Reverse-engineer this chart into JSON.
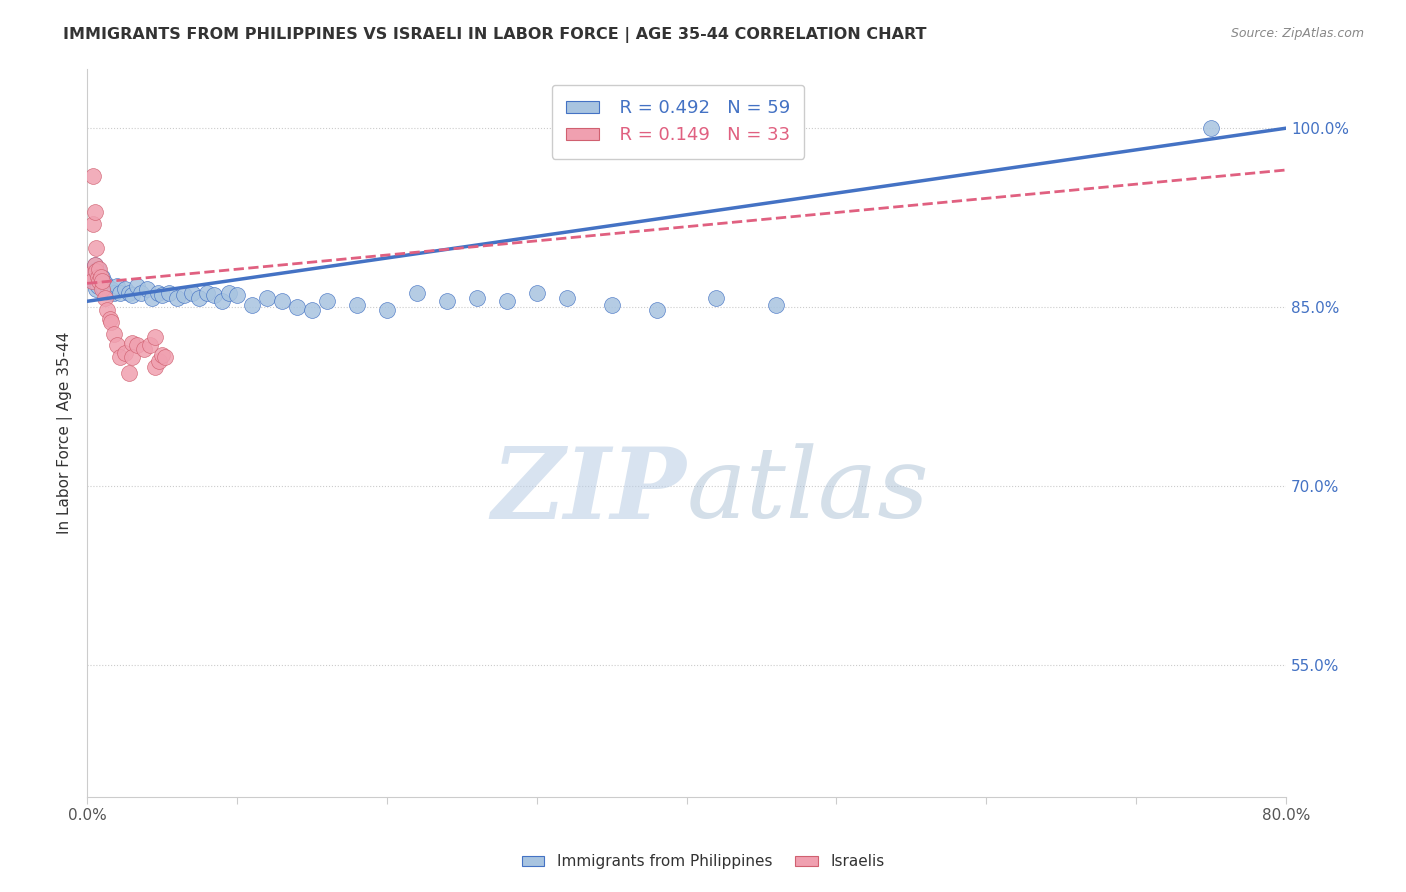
{
  "title": "IMMIGRANTS FROM PHILIPPINES VS ISRAELI IN LABOR FORCE | AGE 35-44 CORRELATION CHART",
  "source": "Source: ZipAtlas.com",
  "xlabel": "",
  "ylabel": "In Labor Force | Age 35-44",
  "x_min": 0.0,
  "x_max": 0.8,
  "y_min": 0.44,
  "y_max": 1.05,
  "right_yticks": [
    0.55,
    0.7,
    0.85,
    1.0
  ],
  "right_yticklabels": [
    "55.0%",
    "70.0%",
    "85.0%",
    "100.0%"
  ],
  "x_ticks": [
    0.0,
    0.1,
    0.2,
    0.3,
    0.4,
    0.5,
    0.6,
    0.7,
    0.8
  ],
  "x_ticklabels": [
    "0.0%",
    "",
    "",
    "",
    "",
    "",
    "",
    "",
    "80.0%"
  ],
  "philippines_color": "#a8c4e0",
  "israel_color": "#f0a0b0",
  "philippines_line_color": "#4472c4",
  "israel_line_color": "#e06080",
  "R_philippines": 0.492,
  "N_philippines": 59,
  "R_israel": 0.149,
  "N_israel": 33,
  "legend_philippines": "Immigrants from Philippines",
  "legend_israel": "Israelis",
  "watermark": "ZIPatlas",
  "philippines_x": [
    0.002,
    0.003,
    0.004,
    0.005,
    0.005,
    0.006,
    0.006,
    0.007,
    0.007,
    0.008,
    0.009,
    0.01,
    0.01,
    0.011,
    0.012,
    0.013,
    0.015,
    0.016,
    0.018,
    0.02,
    0.022,
    0.025,
    0.028,
    0.03,
    0.033,
    0.036,
    0.04,
    0.043,
    0.047,
    0.05,
    0.055,
    0.06,
    0.065,
    0.07,
    0.075,
    0.08,
    0.085,
    0.09,
    0.095,
    0.1,
    0.11,
    0.12,
    0.13,
    0.14,
    0.15,
    0.16,
    0.18,
    0.2,
    0.22,
    0.24,
    0.26,
    0.28,
    0.3,
    0.32,
    0.35,
    0.38,
    0.42,
    0.46,
    0.75
  ],
  "philippines_y": [
    0.875,
    0.88,
    0.872,
    0.885,
    0.87,
    0.878,
    0.865,
    0.882,
    0.868,
    0.875,
    0.87,
    0.868,
    0.875,
    0.865,
    0.87,
    0.868,
    0.862,
    0.865,
    0.862,
    0.868,
    0.862,
    0.865,
    0.862,
    0.86,
    0.868,
    0.862,
    0.865,
    0.858,
    0.862,
    0.86,
    0.862,
    0.858,
    0.86,
    0.862,
    0.858,
    0.862,
    0.86,
    0.855,
    0.862,
    0.86,
    0.852,
    0.858,
    0.855,
    0.85,
    0.848,
    0.855,
    0.852,
    0.848,
    0.862,
    0.855,
    0.858,
    0.855,
    0.862,
    0.858,
    0.852,
    0.848,
    0.858,
    0.852,
    1.0
  ],
  "israel_x": [
    0.002,
    0.003,
    0.004,
    0.004,
    0.005,
    0.005,
    0.006,
    0.006,
    0.007,
    0.008,
    0.008,
    0.009,
    0.01,
    0.01,
    0.012,
    0.013,
    0.015,
    0.016,
    0.018,
    0.02,
    0.022,
    0.025,
    0.028,
    0.03,
    0.03,
    0.033,
    0.038,
    0.042,
    0.045,
    0.045,
    0.048,
    0.05,
    0.052
  ],
  "israel_y": [
    0.878,
    0.872,
    0.96,
    0.92,
    0.885,
    0.93,
    0.88,
    0.9,
    0.875,
    0.882,
    0.872,
    0.875,
    0.865,
    0.872,
    0.858,
    0.848,
    0.84,
    0.838,
    0.828,
    0.818,
    0.808,
    0.812,
    0.795,
    0.82,
    0.808,
    0.818,
    0.815,
    0.818,
    0.825,
    0.8,
    0.805,
    0.81,
    0.808
  ],
  "phil_line_x": [
    0.0,
    0.8
  ],
  "phil_line_y": [
    0.855,
    1.0
  ],
  "isr_line_x": [
    0.0,
    0.8
  ],
  "isr_line_y": [
    0.87,
    0.965
  ]
}
